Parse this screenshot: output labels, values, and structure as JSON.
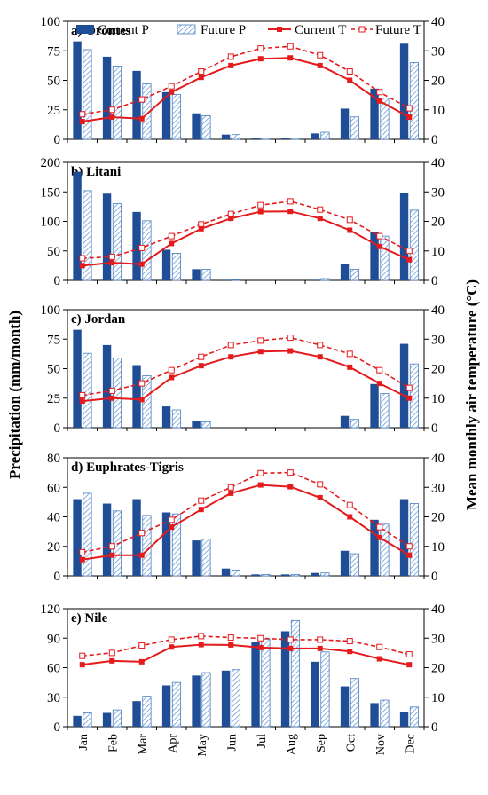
{
  "colors": {
    "current_p": "#1f4e96",
    "future_p_stroke": "#4a7fc1",
    "future_p_hatch": "#5b8fd0",
    "current_t": "#e41a1c",
    "future_t": "#e41a1c"
  },
  "shared": {
    "ylabel_left": "Precipitation (mm/month)",
    "ylabel_right": "Mean monthly  air  temperature (°C)",
    "months": [
      "Jan",
      "Feb",
      "Mar",
      "Apr",
      "May",
      "Jun",
      "Jul",
      "Aug",
      "Sep",
      "Oct",
      "Nov",
      "Dec"
    ],
    "legend": {
      "current_p": "Current P",
      "future_p": "Future P",
      "current_t": "Current T",
      "future_t": "Future T"
    }
  },
  "chart_data": [
    {
      "type": "bar",
      "title": "a) Orontes",
      "categories": [
        "Jan",
        "Feb",
        "Mar",
        "Apr",
        "May",
        "Jun",
        "Jul",
        "Aug",
        "Sep",
        "Oct",
        "Nov",
        "Dec"
      ],
      "ylim": [
        0,
        100
      ],
      "yticks": [
        0,
        25,
        50,
        75,
        100
      ],
      "y2lim": [
        0,
        40
      ],
      "y2ticks": [
        0,
        10,
        20,
        30,
        40
      ],
      "series": [
        {
          "name": "Current P",
          "kind": "bar",
          "axis": "left",
          "values": [
            83,
            70,
            58,
            40,
            22,
            4,
            1,
            1,
            5,
            26,
            43,
            81
          ]
        },
        {
          "name": "Future P",
          "kind": "bar-hatched",
          "axis": "left",
          "values": [
            76,
            62,
            47,
            38,
            20,
            4,
            1,
            1,
            6,
            19,
            35,
            65
          ]
        },
        {
          "name": "Current T",
          "kind": "line",
          "axis": "right",
          "values": [
            6,
            7.5,
            7,
            16,
            21,
            25,
            27.3,
            27.6,
            25,
            20,
            13,
            7.5
          ]
        },
        {
          "name": "Future T",
          "kind": "line-dashed",
          "axis": "right",
          "values": [
            8.5,
            10,
            13.5,
            18,
            23,
            28,
            30.8,
            31.5,
            28.5,
            23,
            16,
            10.5
          ]
        }
      ]
    },
    {
      "type": "bar",
      "title": "b) Litani",
      "categories": [
        "Jan",
        "Feb",
        "Mar",
        "Apr",
        "May",
        "Jun",
        "Jul",
        "Aug",
        "Sep",
        "Oct",
        "Nov",
        "Dec"
      ],
      "ylim": [
        0,
        200
      ],
      "yticks": [
        0,
        50,
        100,
        150,
        200
      ],
      "y2lim": [
        0,
        40
      ],
      "y2ticks": [
        0,
        10,
        20,
        30,
        40
      ],
      "series": [
        {
          "name": "Current P",
          "kind": "bar",
          "axis": "left",
          "values": [
            184,
            147,
            116,
            52,
            19,
            1,
            0,
            0,
            1,
            28,
            82,
            148
          ]
        },
        {
          "name": "Future P",
          "kind": "bar-hatched",
          "axis": "left",
          "values": [
            152,
            130,
            101,
            46,
            19,
            1,
            0,
            0,
            3,
            19,
            75,
            119
          ]
        },
        {
          "name": "Current T",
          "kind": "line",
          "axis": "right",
          "values": [
            5,
            6,
            5.5,
            12.5,
            17.5,
            21,
            23.3,
            23.4,
            21,
            17,
            11.5,
            7
          ]
        },
        {
          "name": "Future T",
          "kind": "line-dashed",
          "axis": "right",
          "values": [
            7.5,
            8,
            11,
            15,
            19,
            22.5,
            25.5,
            26.8,
            24,
            20.5,
            15,
            10
          ]
        }
      ]
    },
    {
      "type": "bar",
      "title": "c) Jordan",
      "categories": [
        "Jan",
        "Feb",
        "Mar",
        "Apr",
        "May",
        "Jun",
        "Jul",
        "Aug",
        "Sep",
        "Oct",
        "Nov",
        "Dec"
      ],
      "ylim": [
        0,
        100
      ],
      "yticks": [
        0,
        25,
        50,
        75,
        100
      ],
      "y2lim": [
        0,
        40
      ],
      "y2ticks": [
        0,
        10,
        20,
        30,
        40
      ],
      "series": [
        {
          "name": "Current P",
          "kind": "bar",
          "axis": "left",
          "values": [
            83,
            70,
            53,
            18,
            6,
            0,
            0,
            0,
            0,
            10,
            37,
            71
          ]
        },
        {
          "name": "Future P",
          "kind": "bar-hatched",
          "axis": "left",
          "values": [
            63,
            59,
            44,
            15,
            5,
            0,
            0,
            0,
            0,
            7,
            29,
            54
          ]
        },
        {
          "name": "Current T",
          "kind": "line",
          "axis": "right",
          "values": [
            9,
            10,
            9.5,
            17,
            21,
            24,
            25.8,
            26,
            24,
            20.5,
            15,
            10
          ]
        },
        {
          "name": "Future T",
          "kind": "line-dashed",
          "axis": "right",
          "values": [
            11,
            12.5,
            15,
            19.5,
            24,
            28,
            29.5,
            30.5,
            28,
            25,
            19.5,
            13.5
          ]
        }
      ]
    },
    {
      "type": "bar",
      "title": "d) Euphrates-Tigris",
      "categories": [
        "Jan",
        "Feb",
        "Mar",
        "Apr",
        "May",
        "Jun",
        "Jul",
        "Aug",
        "Sep",
        "Oct",
        "Nov",
        "Dec"
      ],
      "ylim": [
        0,
        80
      ],
      "yticks": [
        0,
        20,
        40,
        60,
        80
      ],
      "y2lim": [
        0,
        40
      ],
      "y2ticks": [
        0,
        10,
        20,
        30,
        40
      ],
      "series": [
        {
          "name": "Current P",
          "kind": "bar",
          "axis": "left",
          "values": [
            52,
            49,
            52,
            43,
            24,
            5,
            1,
            1,
            2,
            17,
            38,
            52
          ]
        },
        {
          "name": "Future P",
          "kind": "bar-hatched",
          "axis": "left",
          "values": [
            56,
            44,
            41,
            42,
            25,
            4,
            1,
            1,
            2,
            15,
            35,
            49
          ]
        },
        {
          "name": "Current T",
          "kind": "line",
          "axis": "right",
          "values": [
            5.5,
            7,
            7,
            16.5,
            22.5,
            28,
            30.8,
            30.2,
            26.5,
            20,
            13,
            7
          ]
        },
        {
          "name": "Future T",
          "kind": "line-dashed",
          "axis": "right",
          "values": [
            8,
            10,
            14.5,
            19,
            25.5,
            30,
            34.8,
            35,
            31,
            24,
            16.5,
            10
          ]
        }
      ]
    },
    {
      "type": "bar",
      "title": "e) Nile",
      "categories": [
        "Jan",
        "Feb",
        "Mar",
        "Apr",
        "May",
        "Jun",
        "Jul",
        "Aug",
        "Sep",
        "Oct",
        "Nov",
        "Dec"
      ],
      "ylim": [
        0,
        120
      ],
      "yticks": [
        0,
        30,
        60,
        90,
        120
      ],
      "y2lim": [
        0,
        40
      ],
      "y2ticks": [
        0,
        10,
        20,
        30,
        40
      ],
      "series": [
        {
          "name": "Current P",
          "kind": "bar",
          "axis": "left",
          "values": [
            11,
            14,
            26,
            42,
            52,
            57,
            86,
            97,
            66,
            41,
            24,
            15
          ]
        },
        {
          "name": "Future P",
          "kind": "bar-hatched",
          "axis": "left",
          "values": [
            14,
            17,
            31,
            45,
            55,
            58,
            89,
            108,
            76,
            49,
            27,
            20
          ]
        },
        {
          "name": "Current T",
          "kind": "line",
          "axis": "right",
          "values": [
            21,
            22.3,
            22,
            27,
            27.8,
            27.7,
            26.8,
            26.5,
            26.5,
            25.5,
            23,
            21
          ]
        },
        {
          "name": "Future T",
          "kind": "line-dashed",
          "axis": "right",
          "values": [
            24,
            25,
            27.5,
            29.5,
            30.7,
            30.2,
            30,
            29.5,
            29.5,
            29,
            27,
            24.5
          ]
        }
      ]
    }
  ]
}
